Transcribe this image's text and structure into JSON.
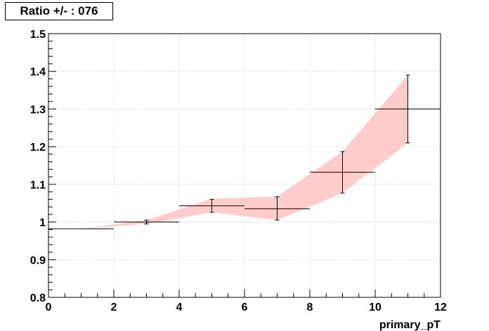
{
  "chart_data": {
    "type": "line",
    "title": "Ratio +/- : 076",
    "xlabel": "primary_pT",
    "ylabel": "",
    "xlim": [
      0,
      12
    ],
    "ylim": [
      0.8,
      1.5
    ],
    "x_ticks": [
      "0",
      "2",
      "4",
      "6",
      "8",
      "10",
      "12"
    ],
    "y_ticks": [
      "0.8",
      "0.9",
      "1",
      "1.1",
      "1.2",
      "1.3",
      "1.4",
      "1.5"
    ],
    "grid": true,
    "colors": {
      "band": "#ffcccc",
      "points": "#000000"
    },
    "points": [
      {
        "x": 1,
        "y": 0.982,
        "xlow": 0,
        "xhigh": 2,
        "ylow": 0.982,
        "yhigh": 0.982
      },
      {
        "x": 3,
        "y": 1.0,
        "xlow": 2,
        "xhigh": 4,
        "ylow": 0.995,
        "yhigh": 1.005
      },
      {
        "x": 5,
        "y": 1.043,
        "xlow": 4,
        "xhigh": 6,
        "ylow": 1.026,
        "yhigh": 1.06
      },
      {
        "x": 7,
        "y": 1.035,
        "xlow": 6,
        "xhigh": 8,
        "ylow": 1.005,
        "yhigh": 1.067
      },
      {
        "x": 9,
        "y": 1.132,
        "xlow": 8,
        "xhigh": 10,
        "ylow": 1.077,
        "yhigh": 1.187
      },
      {
        "x": 11,
        "y": 1.3,
        "xlow": 10,
        "xhigh": 12,
        "ylow": 1.21,
        "yhigh": 1.39
      }
    ],
    "band": {
      "x": [
        1,
        3,
        5,
        7,
        9,
        11
      ],
      "upper": [
        0.982,
        1.005,
        1.062,
        1.068,
        1.187,
        1.39
      ],
      "lower": [
        0.982,
        0.995,
        1.026,
        1.005,
        1.077,
        1.21
      ]
    }
  }
}
